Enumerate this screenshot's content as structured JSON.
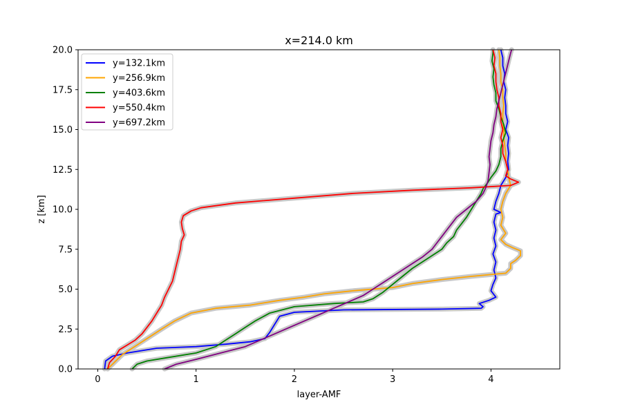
{
  "chart_data": {
    "type": "line",
    "title": "x=214.0 km",
    "xlabel": "layer-AMF",
    "ylabel": "z [km]",
    "xlim": [
      -0.2,
      4.7
    ],
    "ylim": [
      0.0,
      20.0
    ],
    "xticks": [
      0,
      1,
      2,
      3,
      4
    ],
    "xtick_labels": [
      "0",
      "1",
      "2",
      "3",
      "4"
    ],
    "yticks": [
      0.0,
      2.5,
      5.0,
      7.5,
      10.0,
      12.5,
      15.0,
      17.5,
      20.0
    ],
    "ytick_labels": [
      "0.0",
      "2.5",
      "5.0",
      "7.5",
      "10.0",
      "12.5",
      "15.0",
      "17.5",
      "20.0"
    ],
    "grid": false,
    "legend_position": "top-left",
    "uncertainty_band_color": "#c8c8c8",
    "series": [
      {
        "name": "y=132.1km",
        "color": "#0000ff",
        "points": [
          [
            0.07,
            0.0
          ],
          [
            0.08,
            0.5
          ],
          [
            0.15,
            0.8
          ],
          [
            0.3,
            1.0
          ],
          [
            0.6,
            1.3
          ],
          [
            1.0,
            1.4
          ],
          [
            1.3,
            1.55
          ],
          [
            1.55,
            1.7
          ],
          [
            1.7,
            1.9
          ],
          [
            1.75,
            2.3
          ],
          [
            1.8,
            2.8
          ],
          [
            1.85,
            3.3
          ],
          [
            2.0,
            3.55
          ],
          [
            2.5,
            3.7
          ],
          [
            3.5,
            3.75
          ],
          [
            3.9,
            3.8
          ],
          [
            3.92,
            3.9
          ],
          [
            3.88,
            4.1
          ],
          [
            3.98,
            4.3
          ],
          [
            4.05,
            4.5
          ],
          [
            4.0,
            4.9
          ],
          [
            4.02,
            5.3
          ],
          [
            4.05,
            5.7
          ],
          [
            4.03,
            6.2
          ],
          [
            4.05,
            6.7
          ],
          [
            4.02,
            7.2
          ],
          [
            4.05,
            7.7
          ],
          [
            4.03,
            8.2
          ],
          [
            4.05,
            8.7
          ],
          [
            4.03,
            9.2
          ],
          [
            4.05,
            9.7
          ],
          [
            4.1,
            9.8
          ],
          [
            4.03,
            10.0
          ],
          [
            4.05,
            10.5
          ],
          [
            4.08,
            11.0
          ],
          [
            4.1,
            11.5
          ],
          [
            4.15,
            12.0
          ],
          [
            4.18,
            12.5
          ],
          [
            4.17,
            13.0
          ],
          [
            4.18,
            13.5
          ],
          [
            4.17,
            14.0
          ],
          [
            4.18,
            14.5
          ],
          [
            4.15,
            15.0
          ],
          [
            4.17,
            15.5
          ],
          [
            4.15,
            16.0
          ],
          [
            4.15,
            16.5
          ],
          [
            4.14,
            17.0
          ],
          [
            4.15,
            17.5
          ],
          [
            4.13,
            18.0
          ],
          [
            4.14,
            18.5
          ],
          [
            4.12,
            19.0
          ],
          [
            4.12,
            19.5
          ],
          [
            4.1,
            20.0
          ]
        ]
      },
      {
        "name": "y=256.9km",
        "color": "#ffa500",
        "points": [
          [
            0.1,
            0.0
          ],
          [
            0.15,
            0.3
          ],
          [
            0.2,
            0.6
          ],
          [
            0.25,
            0.9
          ],
          [
            0.35,
            1.3
          ],
          [
            0.45,
            1.7
          ],
          [
            0.55,
            2.1
          ],
          [
            0.65,
            2.5
          ],
          [
            0.78,
            3.0
          ],
          [
            0.95,
            3.5
          ],
          [
            1.2,
            3.8
          ],
          [
            1.55,
            4.0
          ],
          [
            1.85,
            4.3
          ],
          [
            2.1,
            4.5
          ],
          [
            2.3,
            4.7
          ],
          [
            2.6,
            4.9
          ],
          [
            3.0,
            5.1
          ],
          [
            3.2,
            5.35
          ],
          [
            3.5,
            5.6
          ],
          [
            3.8,
            5.8
          ],
          [
            4.15,
            6.0
          ],
          [
            4.2,
            6.3
          ],
          [
            4.2,
            6.6
          ],
          [
            4.25,
            6.8
          ],
          [
            4.3,
            7.1
          ],
          [
            4.3,
            7.4
          ],
          [
            4.22,
            7.6
          ],
          [
            4.15,
            7.8
          ],
          [
            4.1,
            8.1
          ],
          [
            4.15,
            8.5
          ],
          [
            4.1,
            9.0
          ],
          [
            4.12,
            9.5
          ],
          [
            4.1,
            10.0
          ],
          [
            4.12,
            10.5
          ],
          [
            4.15,
            11.0
          ],
          [
            4.2,
            11.5
          ],
          [
            4.18,
            12.0
          ],
          [
            4.17,
            12.5
          ],
          [
            4.15,
            13.0
          ],
          [
            4.15,
            13.5
          ],
          [
            4.14,
            14.0
          ],
          [
            4.13,
            14.5
          ],
          [
            4.13,
            15.0
          ],
          [
            4.12,
            15.5
          ],
          [
            4.12,
            16.0
          ],
          [
            4.13,
            16.5
          ],
          [
            4.12,
            17.0
          ],
          [
            4.12,
            17.5
          ],
          [
            4.1,
            18.0
          ],
          [
            4.1,
            18.5
          ],
          [
            4.09,
            19.0
          ],
          [
            4.09,
            19.5
          ],
          [
            4.08,
            20.0
          ]
        ]
      },
      {
        "name": "y=403.6km",
        "color": "#008000",
        "points": [
          [
            0.35,
            0.0
          ],
          [
            0.4,
            0.3
          ],
          [
            0.5,
            0.5
          ],
          [
            0.7,
            0.7
          ],
          [
            1.0,
            1.0
          ],
          [
            1.2,
            1.4
          ],
          [
            1.3,
            1.8
          ],
          [
            1.4,
            2.2
          ],
          [
            1.5,
            2.6
          ],
          [
            1.6,
            3.0
          ],
          [
            1.75,
            3.5
          ],
          [
            2.0,
            3.9
          ],
          [
            2.4,
            4.1
          ],
          [
            2.7,
            4.2
          ],
          [
            2.8,
            4.4
          ],
          [
            2.9,
            4.8
          ],
          [
            3.0,
            5.3
          ],
          [
            3.1,
            5.8
          ],
          [
            3.2,
            6.3
          ],
          [
            3.3,
            6.7
          ],
          [
            3.4,
            7.1
          ],
          [
            3.5,
            7.5
          ],
          [
            3.55,
            7.9
          ],
          [
            3.62,
            8.3
          ],
          [
            3.65,
            8.7
          ],
          [
            3.7,
            9.1
          ],
          [
            3.75,
            9.5
          ],
          [
            3.8,
            10.0
          ],
          [
            3.85,
            10.5
          ],
          [
            3.9,
            11.0
          ],
          [
            3.92,
            11.3
          ],
          [
            3.97,
            11.7
          ],
          [
            4.0,
            12.0
          ],
          [
            4.05,
            12.4
          ],
          [
            4.08,
            12.8
          ],
          [
            4.1,
            13.3
          ],
          [
            4.1,
            13.8
          ],
          [
            4.12,
            14.3
          ],
          [
            4.15,
            14.8
          ],
          [
            4.13,
            15.3
          ],
          [
            4.1,
            15.8
          ],
          [
            4.08,
            16.3
          ],
          [
            4.05,
            16.8
          ],
          [
            4.05,
            17.3
          ],
          [
            4.03,
            17.8
          ],
          [
            4.02,
            18.3
          ],
          [
            4.03,
            18.8
          ],
          [
            4.01,
            19.3
          ],
          [
            4.02,
            19.8
          ],
          [
            4.02,
            20.0
          ]
        ]
      },
      {
        "name": "y=550.4km",
        "color": "#ff0000",
        "points": [
          [
            0.1,
            0.0
          ],
          [
            0.12,
            0.4
          ],
          [
            0.18,
            0.8
          ],
          [
            0.22,
            1.2
          ],
          [
            0.3,
            1.5
          ],
          [
            0.38,
            1.8
          ],
          [
            0.45,
            2.2
          ],
          [
            0.5,
            2.6
          ],
          [
            0.55,
            3.0
          ],
          [
            0.6,
            3.5
          ],
          [
            0.65,
            4.0
          ],
          [
            0.68,
            4.5
          ],
          [
            0.72,
            5.0
          ],
          [
            0.76,
            5.5
          ],
          [
            0.78,
            6.0
          ],
          [
            0.8,
            6.5
          ],
          [
            0.82,
            7.0
          ],
          [
            0.84,
            7.5
          ],
          [
            0.85,
            8.0
          ],
          [
            0.88,
            8.4
          ],
          [
            0.86,
            8.8
          ],
          [
            0.85,
            9.2
          ],
          [
            0.87,
            9.6
          ],
          [
            0.95,
            9.9
          ],
          [
            1.05,
            10.1
          ],
          [
            1.4,
            10.4
          ],
          [
            2.0,
            10.7
          ],
          [
            2.6,
            11.0
          ],
          [
            3.2,
            11.2
          ],
          [
            3.8,
            11.35
          ],
          [
            4.2,
            11.5
          ],
          [
            4.28,
            11.7
          ],
          [
            4.2,
            11.9
          ],
          [
            4.15,
            12.1
          ],
          [
            4.17,
            12.5
          ],
          [
            4.15,
            13.0
          ],
          [
            4.12,
            13.5
          ],
          [
            4.12,
            14.0
          ],
          [
            4.1,
            14.5
          ],
          [
            4.12,
            15.0
          ],
          [
            4.1,
            15.5
          ],
          [
            4.1,
            16.0
          ],
          [
            4.08,
            16.5
          ],
          [
            4.08,
            17.0
          ],
          [
            4.06,
            17.5
          ],
          [
            4.05,
            18.0
          ],
          [
            4.05,
            18.5
          ],
          [
            4.03,
            19.0
          ],
          [
            4.04,
            19.5
          ],
          [
            4.02,
            20.0
          ]
        ]
      },
      {
        "name": "y=697.2km",
        "color": "#800080",
        "points": [
          [
            0.68,
            0.0
          ],
          [
            0.8,
            0.3
          ],
          [
            1.0,
            0.6
          ],
          [
            1.25,
            1.0
          ],
          [
            1.5,
            1.4
          ],
          [
            1.65,
            1.8
          ],
          [
            1.8,
            2.2
          ],
          [
            1.95,
            2.6
          ],
          [
            2.1,
            3.0
          ],
          [
            2.25,
            3.4
          ],
          [
            2.4,
            3.8
          ],
          [
            2.55,
            4.2
          ],
          [
            2.7,
            4.6
          ],
          [
            2.8,
            5.0
          ],
          [
            2.9,
            5.4
          ],
          [
            3.0,
            5.8
          ],
          [
            3.1,
            6.2
          ],
          [
            3.2,
            6.6
          ],
          [
            3.3,
            7.0
          ],
          [
            3.4,
            7.5
          ],
          [
            3.45,
            7.9
          ],
          [
            3.5,
            8.3
          ],
          [
            3.55,
            8.7
          ],
          [
            3.6,
            9.1
          ],
          [
            3.65,
            9.5
          ],
          [
            3.75,
            10.0
          ],
          [
            3.85,
            10.5
          ],
          [
            3.92,
            11.0
          ],
          [
            3.95,
            11.4
          ],
          [
            3.97,
            11.8
          ],
          [
            3.98,
            12.3
          ],
          [
            3.99,
            12.8
          ],
          [
            3.98,
            13.3
          ],
          [
            3.99,
            13.8
          ],
          [
            4.0,
            14.3
          ],
          [
            4.02,
            14.8
          ],
          [
            4.03,
            15.3
          ],
          [
            4.05,
            15.8
          ],
          [
            4.06,
            16.3
          ],
          [
            4.08,
            16.8
          ],
          [
            4.1,
            17.3
          ],
          [
            4.12,
            17.8
          ],
          [
            4.14,
            18.3
          ],
          [
            4.16,
            18.8
          ],
          [
            4.18,
            19.3
          ],
          [
            4.2,
            19.8
          ],
          [
            4.21,
            20.0
          ]
        ]
      }
    ]
  }
}
